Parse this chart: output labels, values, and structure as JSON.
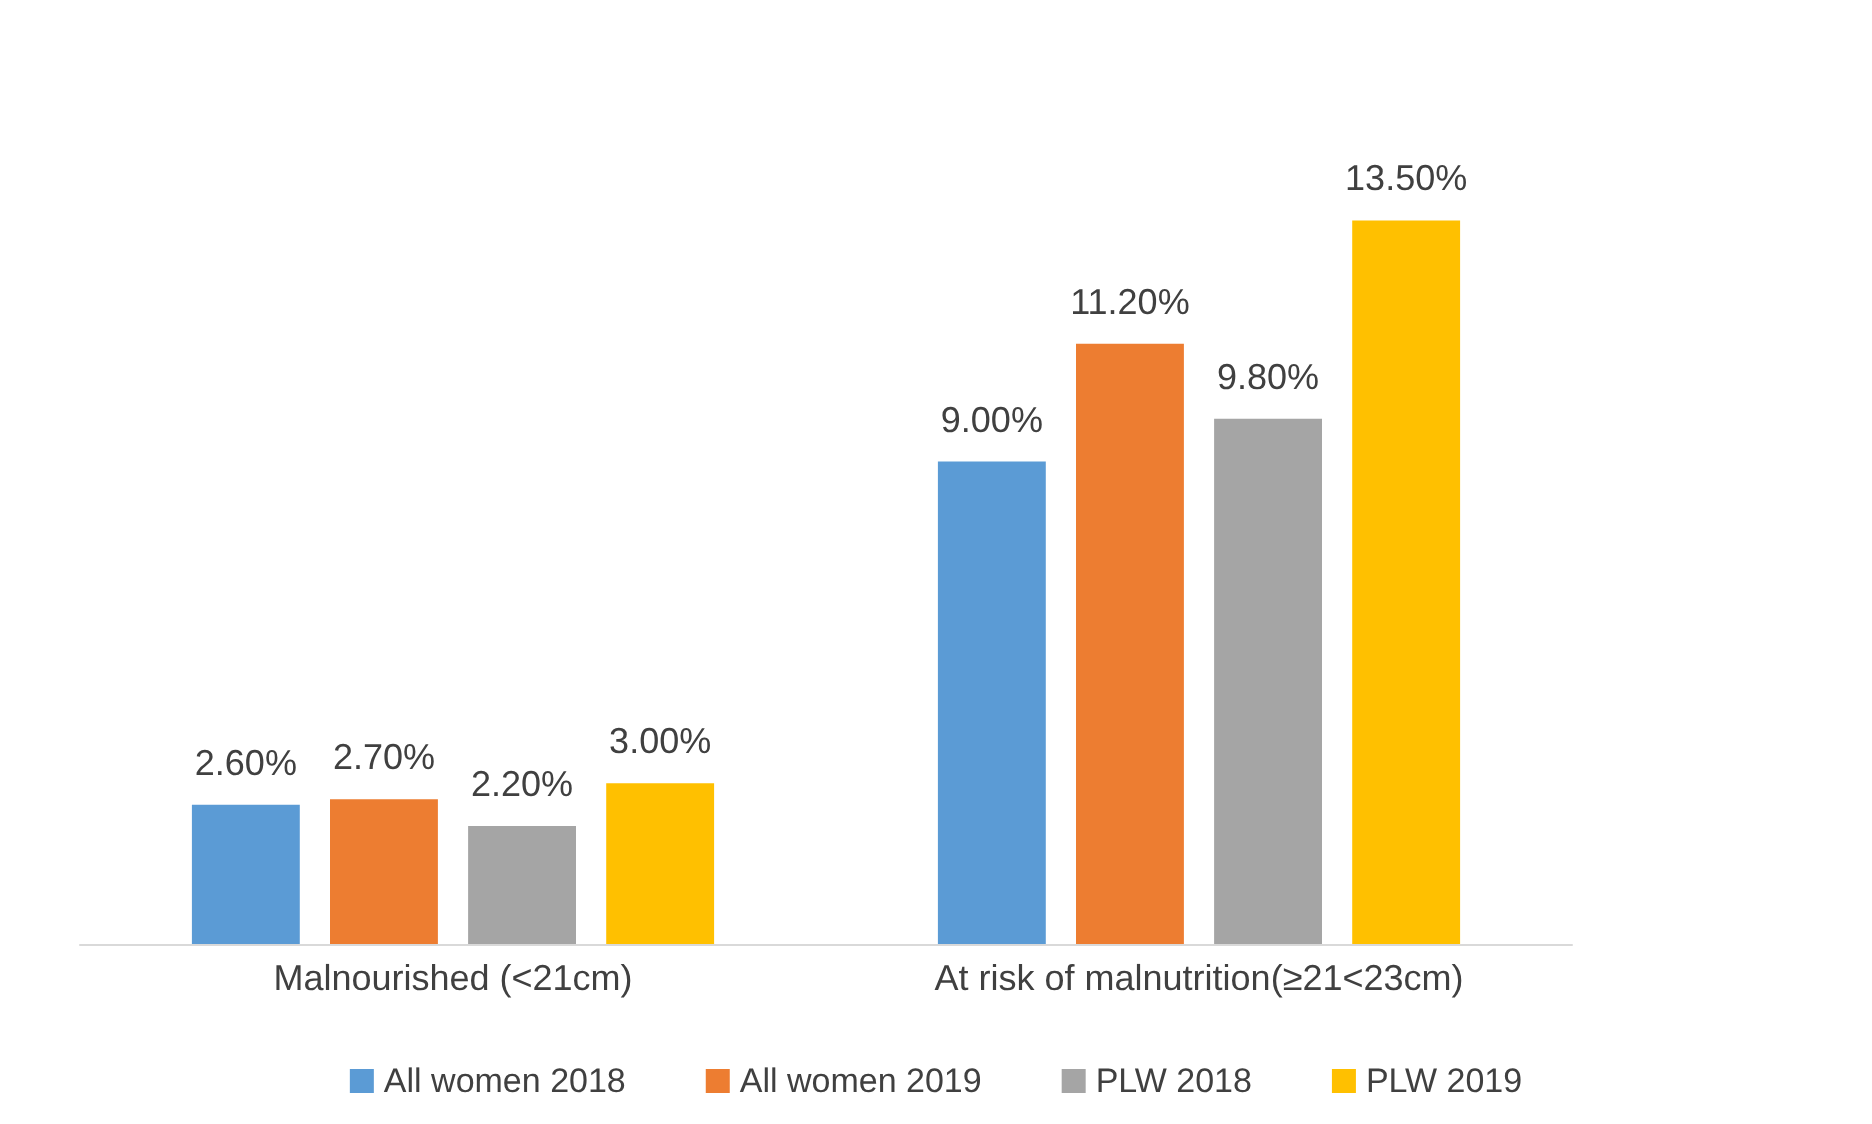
{
  "chart_data": {
    "type": "bar",
    "categories": [
      "Malnourished (<21cm)",
      "At risk of malnutrition(≥21<23cm)"
    ],
    "series": [
      {
        "name": "All women 2018",
        "color": "#5b9bd5",
        "values": [
          2.6,
          9.0
        ],
        "value_labels": [
          "2.60%",
          "9.00%"
        ]
      },
      {
        "name": "All women 2019",
        "color": "#ed7d31",
        "values": [
          2.7,
          11.2
        ],
        "value_labels": [
          "2.70%",
          "11.20%"
        ]
      },
      {
        "name": "PLW 2018",
        "color": "#a5a5a5",
        "values": [
          2.2,
          9.8
        ],
        "value_labels": [
          "2.20%",
          "9.80%"
        ]
      },
      {
        "name": "PLW 2019",
        "color": "#ffc000",
        "values": [
          3.0,
          13.5
        ],
        "value_labels": [
          "3.00%",
          "13.50%"
        ]
      }
    ],
    "legend": "bottom"
  }
}
